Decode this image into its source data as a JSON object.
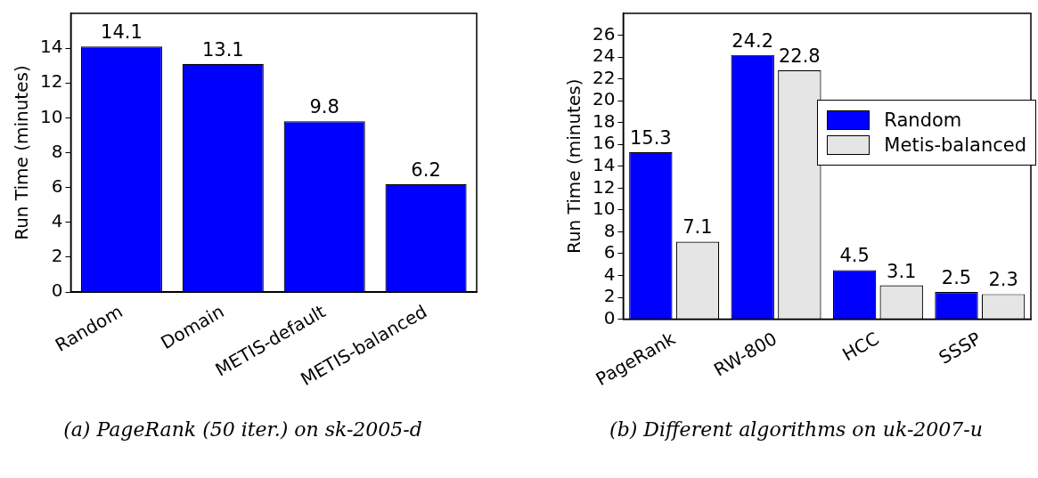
{
  "chart_data": [
    {
      "type": "bar",
      "title": "(a) PageRank (50 iter.) on sk-2005-d",
      "ylabel": "Run Time (minutes)",
      "categories": [
        "Random",
        "Domain",
        "METIS-default",
        "METIS-balanced"
      ],
      "values": [
        14.1,
        13.1,
        9.8,
        6.2
      ],
      "color": "#0000ff",
      "ylim": [
        0,
        16
      ],
      "yticks": [
        0,
        2,
        4,
        6,
        8,
        10,
        12,
        14
      ],
      "data_labels": true
    },
    {
      "type": "bar",
      "title": "(b) Different algorithms on uk-2007-u",
      "ylabel": "Run Time (minutes)",
      "categories": [
        "PageRank",
        "RW-800",
        "HCC",
        "SSSP"
      ],
      "series": [
        {
          "name": "Random",
          "color": "#0000ff",
          "values": [
            15.3,
            24.2,
            4.5,
            2.5
          ]
        },
        {
          "name": "Metis-balanced",
          "color": "#e5e5e5",
          "values": [
            7.1,
            22.8,
            3.1,
            2.3
          ]
        }
      ],
      "ylim": [
        0,
        28
      ],
      "yticks": [
        0,
        2,
        4,
        6,
        8,
        10,
        12,
        14,
        16,
        18,
        20,
        22,
        24,
        26
      ],
      "data_labels": true,
      "legend": "right"
    }
  ]
}
